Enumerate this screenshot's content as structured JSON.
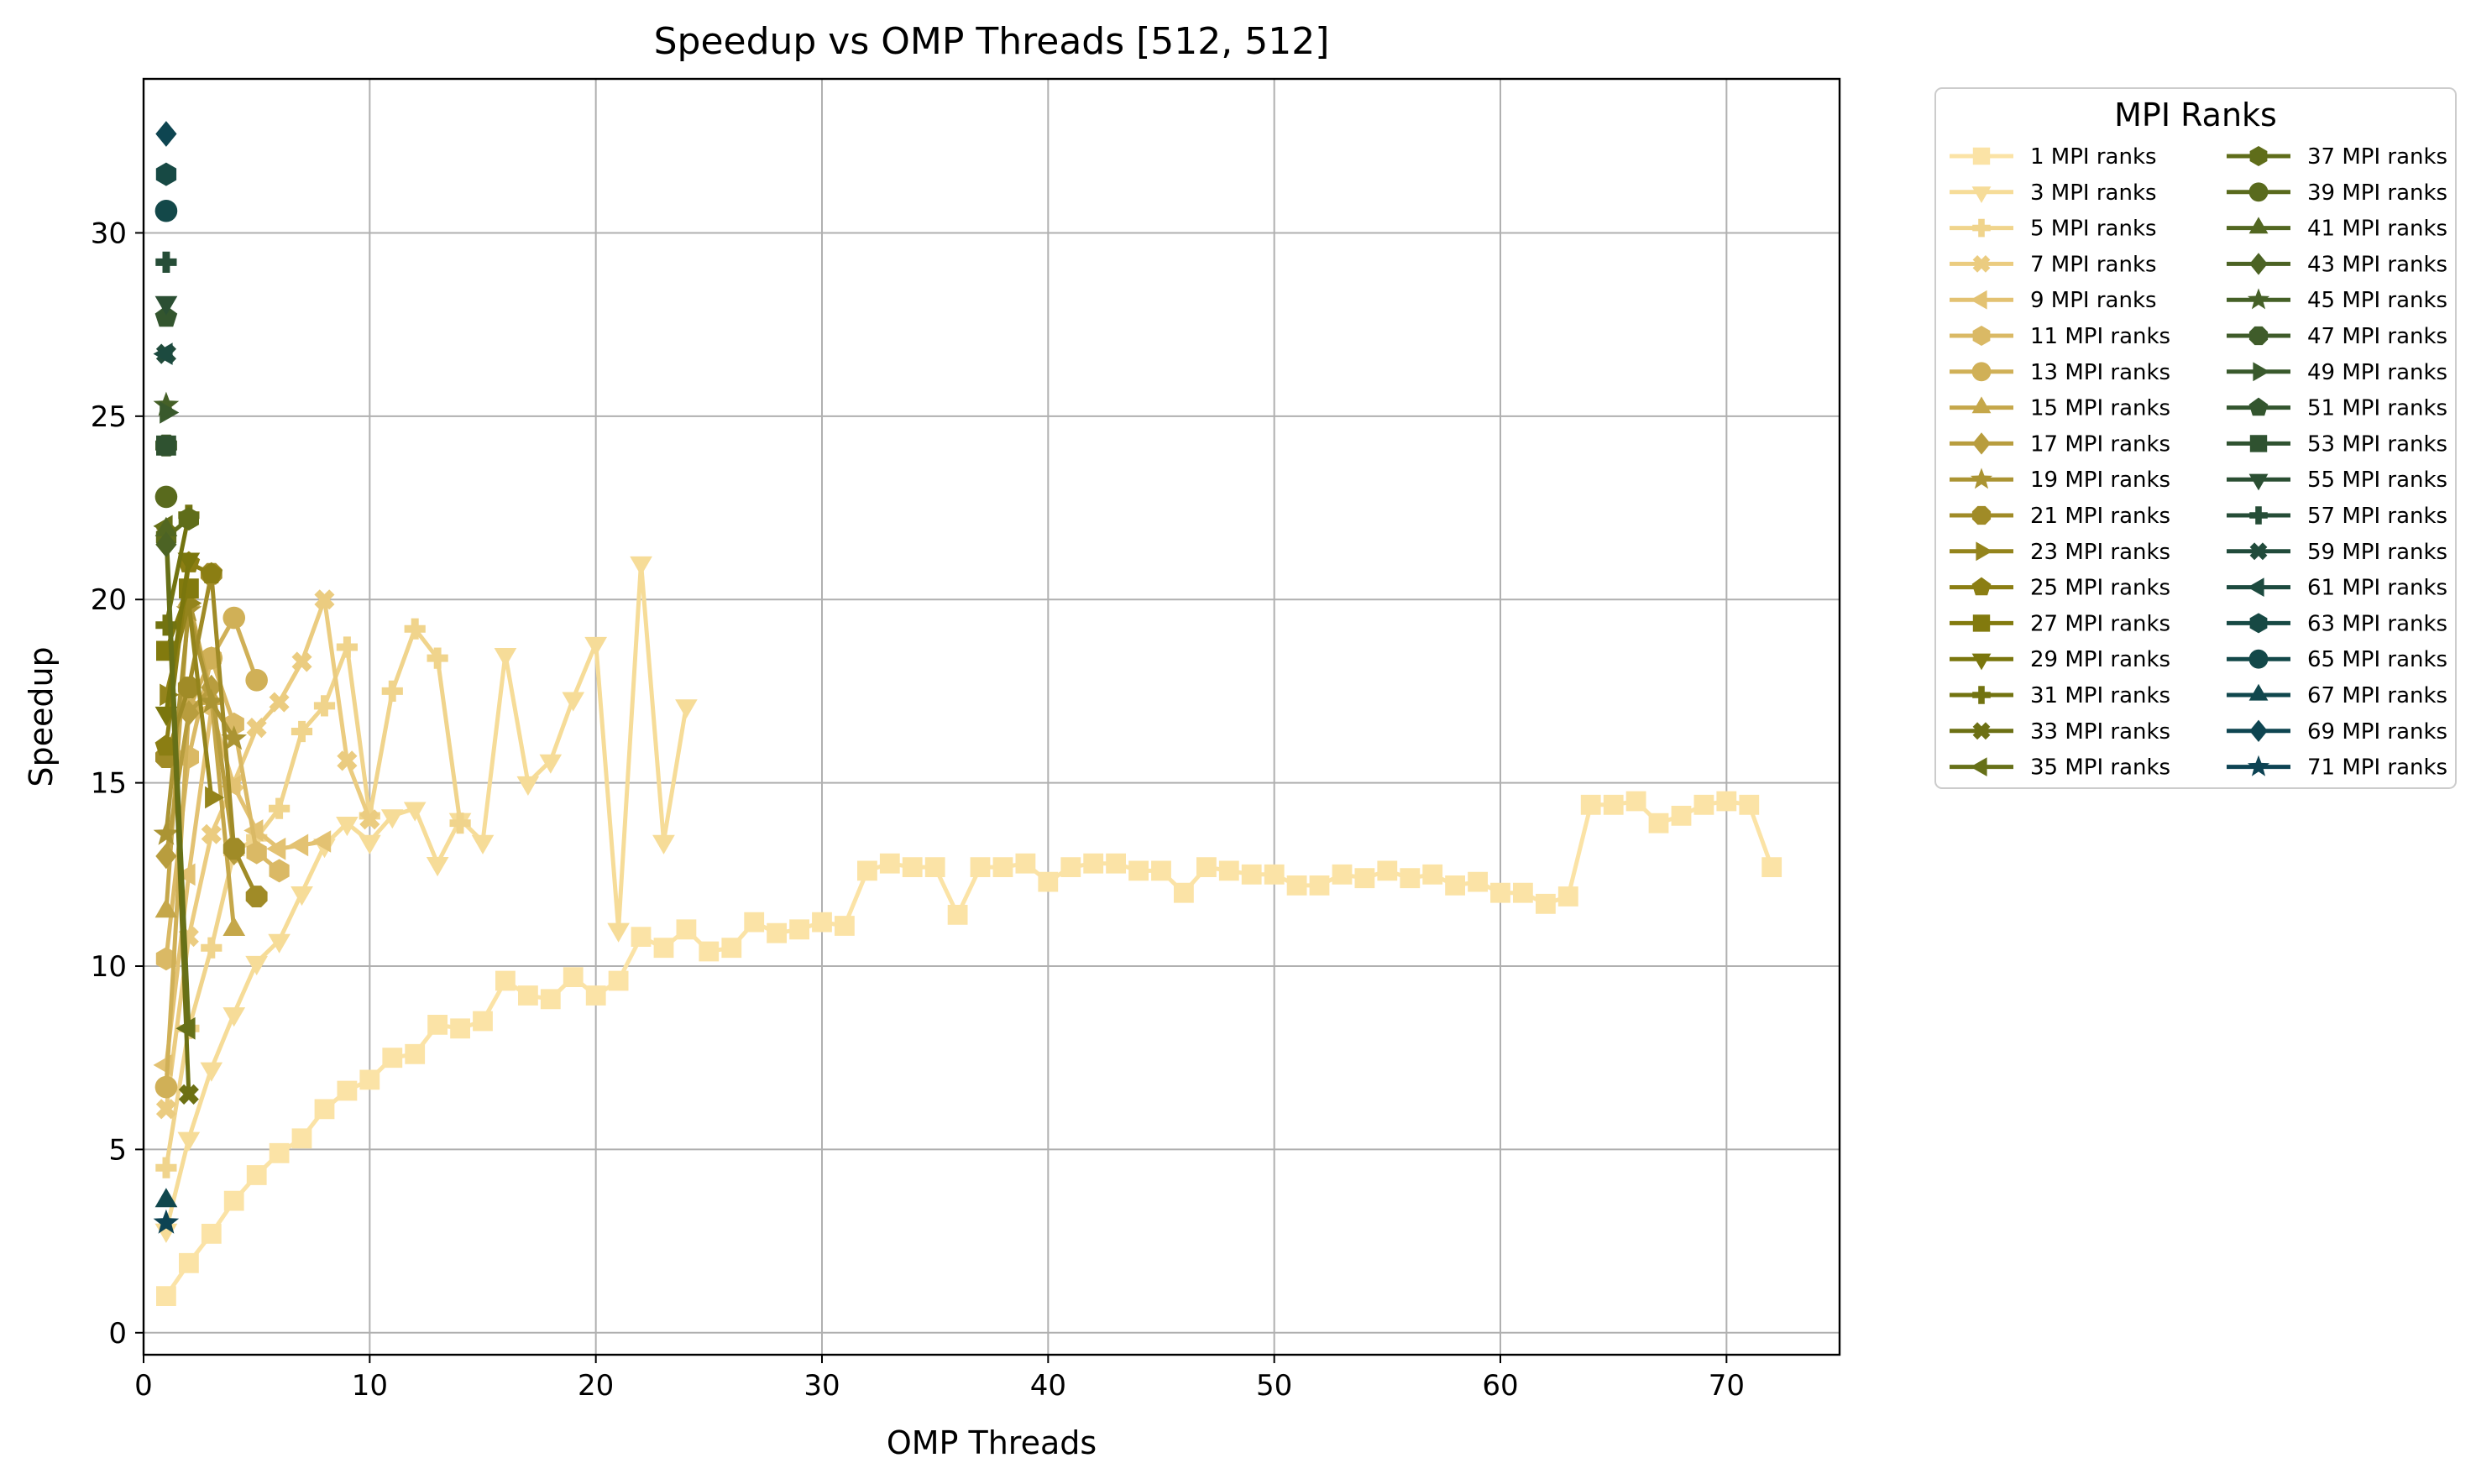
{
  "chart_data": {
    "type": "line",
    "title": "Speedup vs OMP Threads [512, 512]",
    "xlabel": "OMP Threads",
    "ylabel": "Speedup",
    "xlim": [
      0,
      75
    ],
    "ylim": [
      -0.6,
      34.2
    ],
    "xticks": [
      0,
      10,
      20,
      30,
      40,
      50,
      60,
      70
    ],
    "yticks": [
      0,
      5,
      10,
      15,
      20,
      25,
      30
    ],
    "grid": true,
    "legend": {
      "title": "MPI Ranks",
      "placement": "outside-right",
      "columns": 2
    },
    "series": [
      {
        "name": "1 MPI ranks",
        "color": "#fbe3a6",
        "marker": "square",
        "x": [
          1,
          2,
          3,
          4,
          5,
          6,
          7,
          8,
          9,
          10,
          11,
          12,
          13,
          14,
          15,
          16,
          17,
          18,
          19,
          20,
          21,
          22,
          23,
          24,
          25,
          26,
          27,
          28,
          29,
          30,
          31,
          32,
          33,
          34,
          35,
          36,
          37,
          38,
          39,
          40,
          41,
          42,
          43,
          44,
          45,
          46,
          47,
          48,
          49,
          50,
          51,
          52,
          53,
          54,
          55,
          56,
          57,
          58,
          59,
          60,
          61,
          62,
          63,
          64,
          65,
          66,
          67,
          68,
          69,
          70,
          71,
          72
        ],
        "y": [
          1.0,
          1.9,
          2.7,
          3.6,
          4.3,
          4.9,
          5.3,
          6.1,
          6.6,
          6.9,
          7.5,
          7.6,
          8.4,
          8.3,
          8.5,
          9.6,
          9.2,
          9.1,
          9.7,
          9.2,
          9.6,
          10.8,
          10.5,
          11.0,
          10.4,
          10.5,
          11.2,
          10.9,
          11.0,
          11.2,
          11.1,
          12.6,
          12.8,
          12.7,
          12.7,
          11.4,
          12.7,
          12.7,
          12.8,
          12.3,
          12.7,
          12.8,
          12.8,
          12.6,
          12.6,
          12.0,
          12.7,
          12.6,
          12.5,
          12.5,
          12.2,
          12.2,
          12.5,
          12.4,
          12.6,
          12.4,
          12.5,
          12.2,
          12.3,
          12.0,
          12.0,
          11.7,
          11.9,
          14.4,
          14.4,
          14.5,
          13.9,
          14.1,
          14.4,
          14.5,
          14.4,
          12.7
        ]
      },
      {
        "name": "3 MPI ranks",
        "color": "#f6dc98",
        "marker": "triangle_down",
        "x": [
          1,
          2,
          3,
          4,
          5,
          6,
          7,
          8,
          9,
          10,
          11,
          12,
          13,
          14,
          15,
          16,
          17,
          18,
          19,
          20,
          21,
          22,
          23,
          24
        ],
        "y": [
          2.8,
          5.3,
          7.2,
          8.7,
          10.1,
          10.7,
          12.0,
          13.3,
          13.9,
          13.4,
          14.1,
          14.3,
          12.8,
          14.0,
          13.4,
          18.5,
          15.0,
          15.6,
          17.3,
          18.8,
          11.0,
          21.0,
          13.4,
          17.1
        ]
      },
      {
        "name": "5 MPI ranks",
        "color": "#f0d48c",
        "marker": "plus",
        "x": [
          1,
          2,
          3,
          4,
          5,
          6,
          7,
          8,
          9,
          10,
          11,
          12,
          13,
          14
        ],
        "y": [
          4.5,
          8.3,
          10.5,
          13.1,
          13.5,
          14.3,
          16.4,
          17.1,
          18.7,
          14.1,
          17.5,
          19.2,
          18.4,
          13.9
        ]
      },
      {
        "name": "7 MPI ranks",
        "color": "#ebcc80",
        "marker": "x",
        "x": [
          1,
          2,
          3,
          4,
          5,
          6,
          7,
          8,
          9,
          10
        ],
        "y": [
          6.1,
          10.8,
          13.6,
          15.0,
          16.5,
          17.2,
          18.3,
          20.0,
          15.6,
          14.0
        ]
      },
      {
        "name": "9 MPI ranks",
        "color": "#e3c272",
        "marker": "triangle_left",
        "x": [
          1,
          2,
          3,
          4,
          5,
          6,
          7,
          8
        ],
        "y": [
          7.3,
          12.5,
          17.0,
          14.9,
          13.7,
          13.2,
          13.3,
          13.4
        ]
      },
      {
        "name": "11 MPI ranks",
        "color": "#dab965",
        "marker": "hexagon",
        "x": [
          1,
          2,
          3,
          4,
          5,
          6
        ],
        "y": [
          10.2,
          15.7,
          18.4,
          16.6,
          13.1,
          12.6
        ]
      },
      {
        "name": "13 MPI ranks",
        "color": "#d0b057",
        "marker": "circle",
        "x": [
          1,
          2,
          3,
          4,
          5
        ],
        "y": [
          6.7,
          17.0,
          18.4,
          19.5,
          17.8
        ]
      },
      {
        "name": "15 MPI ranks",
        "color": "#c5a74a",
        "marker": "triangle_up",
        "x": [
          1,
          2,
          3,
          4
        ],
        "y": [
          11.5,
          20.0,
          17.3,
          11.0
        ]
      },
      {
        "name": "17 MPI ranks",
        "color": "#b89d3e",
        "marker": "diamond",
        "x": [
          1,
          2,
          3,
          4
        ],
        "y": [
          13.0,
          16.9,
          17.6,
          13.1
        ]
      },
      {
        "name": "19 MPI ranks",
        "color": "#ab9433",
        "marker": "star",
        "x": [
          1,
          2,
          3,
          4
        ],
        "y": [
          13.6,
          19.7,
          17.2,
          16.2
        ]
      },
      {
        "name": "21 MPI ranks",
        "color": "#a08b27",
        "marker": "octagon",
        "x": [
          1,
          2,
          3,
          4,
          5
        ],
        "y": [
          15.7,
          17.6,
          20.7,
          13.2,
          11.9
        ]
      },
      {
        "name": "23 MPI ranks",
        "color": "#94841c",
        "marker": "triangle_right",
        "x": [
          1,
          2,
          3
        ],
        "y": [
          17.4,
          19.9,
          14.6
        ]
      },
      {
        "name": "25 MPI ranks",
        "color": "#8b7e13",
        "marker": "pentagon",
        "x": [
          1,
          2,
          3
        ],
        "y": [
          16.0,
          21.0,
          20.7
        ]
      },
      {
        "name": "27 MPI ranks",
        "color": "#827a0e",
        "marker": "square",
        "x": [
          1,
          2
        ],
        "y": [
          18.6,
          20.3
        ]
      },
      {
        "name": "29 MPI ranks",
        "color": "#7a760d",
        "marker": "triangle_down",
        "x": [
          1,
          2
        ],
        "y": [
          16.9,
          21.1
        ]
      },
      {
        "name": "31 MPI ranks",
        "color": "#727310",
        "marker": "plus",
        "x": [
          1,
          2
        ],
        "y": [
          19.3,
          22.3
        ]
      },
      {
        "name": "33 MPI ranks",
        "color": "#6c7014",
        "marker": "x",
        "x": [
          1,
          2
        ],
        "y": [
          21.8,
          6.5
        ]
      },
      {
        "name": "35 MPI ranks",
        "color": "#667018",
        "marker": "triangle_left",
        "x": [
          1,
          2
        ],
        "y": [
          22.0,
          8.3
        ]
      },
      {
        "name": "37 MPI ranks",
        "color": "#5f6d1a",
        "marker": "hexagon",
        "x": [
          1,
          2
        ],
        "y": [
          21.7,
          22.2
        ]
      },
      {
        "name": "39 MPI ranks",
        "color": "#596a1d",
        "marker": "circle",
        "x": [
          1
        ],
        "y": [
          22.8
        ]
      },
      {
        "name": "41 MPI ranks",
        "color": "#526721",
        "marker": "triangle_up",
        "x": [
          1
        ],
        "y": [
          21.9
        ]
      },
      {
        "name": "43 MPI ranks",
        "color": "#4c6324",
        "marker": "diamond",
        "x": [
          1
        ],
        "y": [
          21.5
        ]
      },
      {
        "name": "45 MPI ranks",
        "color": "#456027",
        "marker": "star",
        "x": [
          1
        ],
        "y": [
          25.3
        ]
      },
      {
        "name": "47 MPI ranks",
        "color": "#3f5c2a",
        "marker": "octagon",
        "x": [
          1
        ],
        "y": [
          24.2
        ]
      },
      {
        "name": "49 MPI ranks",
        "color": "#39592c",
        "marker": "triangle_right",
        "x": [
          1
        ],
        "y": [
          25.1
        ]
      },
      {
        "name": "51 MPI ranks",
        "color": "#33552e",
        "marker": "pentagon",
        "x": [
          1
        ],
        "y": [
          27.7
        ]
      },
      {
        "name": "53 MPI ranks",
        "color": "#2f5230",
        "marker": "square",
        "x": [
          1
        ],
        "y": [
          24.2
        ]
      },
      {
        "name": "55 MPI ranks",
        "color": "#2b4f33",
        "marker": "triangle_down",
        "x": [
          1
        ],
        "y": [
          28.1
        ]
      },
      {
        "name": "57 MPI ranks",
        "color": "#264d37",
        "marker": "plus",
        "x": [
          1
        ],
        "y": [
          29.2
        ]
      },
      {
        "name": "59 MPI ranks",
        "color": "#214b3b",
        "marker": "x",
        "x": [
          1
        ],
        "y": [
          26.7
        ]
      },
      {
        "name": "61 MPI ranks",
        "color": "#1c4a3f",
        "marker": "triangle_left",
        "x": [
          1
        ],
        "y": [
          26.7
        ]
      },
      {
        "name": "63 MPI ranks",
        "color": "#174944",
        "marker": "hexagon",
        "x": [
          1
        ],
        "y": [
          31.6
        ]
      },
      {
        "name": "65 MPI ranks",
        "color": "#134849",
        "marker": "circle",
        "x": [
          1
        ],
        "y": [
          30.6
        ]
      },
      {
        "name": "67 MPI ranks",
        "color": "#10474d",
        "marker": "triangle_up",
        "x": [
          1
        ],
        "y": [
          3.6
        ]
      },
      {
        "name": "69 MPI ranks",
        "color": "#0e4551",
        "marker": "diamond",
        "x": [
          1
        ],
        "y": [
          32.7
        ]
      },
      {
        "name": "71 MPI ranks",
        "color": "#0d4353",
        "marker": "star",
        "x": [
          1
        ],
        "y": [
          3.0
        ]
      }
    ]
  }
}
